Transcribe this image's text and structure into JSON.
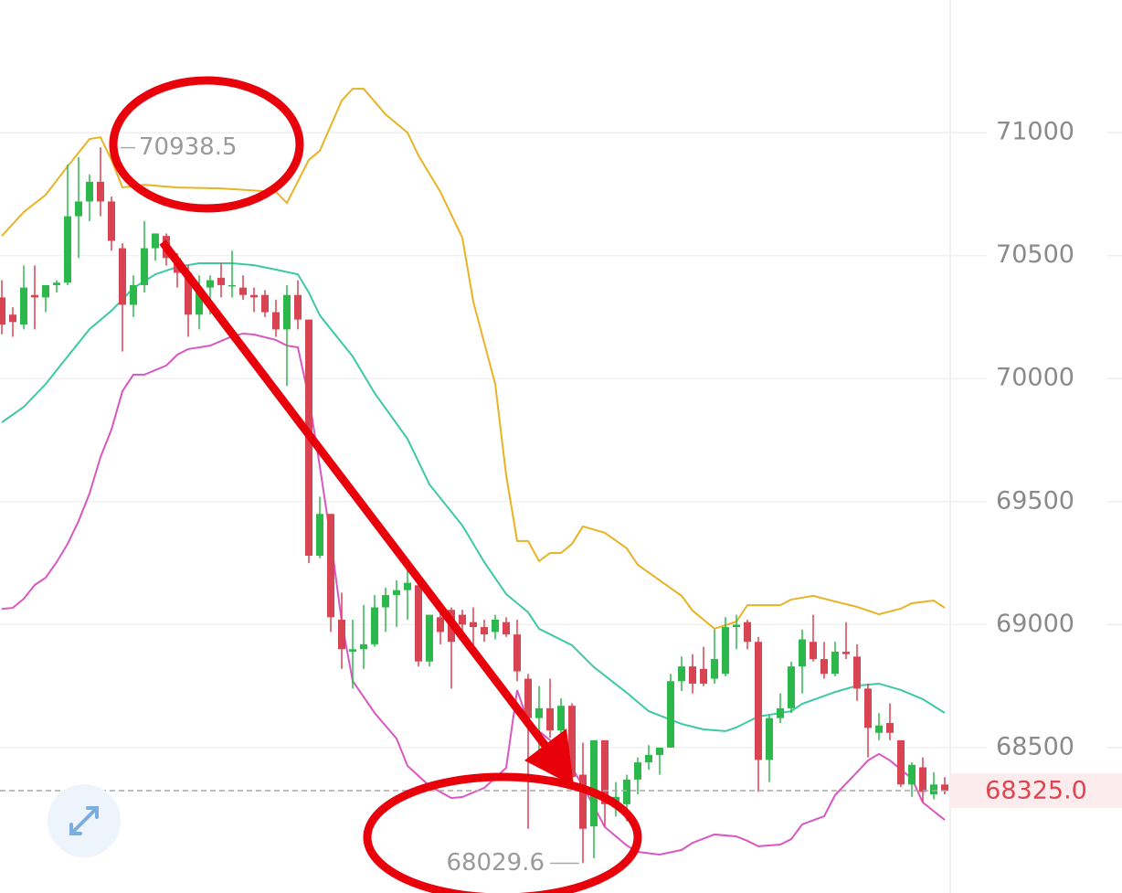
{
  "chart_data": {
    "type": "candlestick",
    "up_color": "#2db84d",
    "down_color": "#d94452",
    "ylim": [
      67909,
      71539
    ],
    "yticks": [
      68500,
      69000,
      69500,
      70000,
      70500,
      71000
    ],
    "grid": true,
    "open": [
      70330,
      70260,
      70220,
      70340,
      70330,
      70380,
      70390,
      70660,
      70720,
      70800,
      70720,
      70530,
      70300,
      70380,
      70530,
      70580,
      70490,
      70430,
      70260,
      70370,
      70410,
      70380,
      70370,
      70340,
      70340,
      70270,
      70200,
      70340,
      70240,
      69280,
      69450,
      69020,
      68890,
      68900,
      68920,
      69070,
      69120,
      69140,
      69160,
      68850,
      69030,
      69060,
      69040,
      69010,
      68990,
      68970,
      69010,
      68960,
      68780,
      68620,
      68660,
      68570,
      68670,
      68390,
      68180,
      68530,
      68270,
      68270,
      68370,
      68440,
      68470,
      68500,
      68770,
      68830,
      68820,
      68780,
      68800,
      68990,
      69010,
      68930,
      68450,
      68620,
      68660,
      68830,
      68930,
      68860,
      68800,
      68890,
      68870,
      68740,
      68560,
      68600,
      68530,
      68350,
      68420,
      68310,
      68350
    ],
    "high": [
      70400,
      70290,
      70460,
      70460,
      70380,
      70400,
      70870,
      70900,
      70830,
      70940,
      70740,
      70550,
      70420,
      70640,
      70590,
      70590,
      70510,
      70460,
      70420,
      70420,
      70470,
      70520,
      70420,
      70370,
      70360,
      70320,
      70380,
      70400,
      70240,
      69520,
      69450,
      69130,
      69020,
      69080,
      69120,
      69150,
      69180,
      69230,
      69200,
      69010,
      69060,
      69070,
      69060,
      69070,
      69020,
      69040,
      69030,
      69020,
      68800,
      68750,
      68780,
      68700,
      68680,
      68520,
      68530,
      68530,
      68360,
      68390,
      68460,
      68510,
      68500,
      68800,
      68870,
      68880,
      68910,
      68980,
      69030,
      69040,
      69020,
      68950,
      68630,
      68720,
      68850,
      68980,
      69040,
      68930,
      68930,
      69010,
      68920,
      68760,
      68640,
      68680,
      68530,
      68440,
      68460,
      68400,
      68380
    ],
    "low": [
      70180,
      70170,
      70200,
      70200,
      70270,
      70350,
      70380,
      70490,
      70640,
      70660,
      70520,
      70110,
      70250,
      70350,
      70480,
      70460,
      70370,
      70170,
      70200,
      70260,
      70330,
      70330,
      70320,
      70270,
      70250,
      70170,
      69970,
      70200,
      69250,
      69270,
      68970,
      68820,
      68740,
      68820,
      68910,
      68970,
      68990,
      69020,
      68830,
      68830,
      68920,
      68740,
      68970,
      68910,
      68930,
      68940,
      68950,
      68770,
      68170,
      68430,
      68540,
      68530,
      68330,
      68030,
      68050,
      68180,
      68220,
      68200,
      68310,
      68410,
      68390,
      68500,
      68730,
      68720,
      68750,
      68760,
      68790,
      68900,
      68900,
      68320,
      68360,
      68600,
      68640,
      68720,
      68850,
      68780,
      68790,
      68860,
      68690,
      68460,
      68530,
      68530,
      68340,
      68300,
      68280,
      68290,
      68310
    ],
    "close": [
      70220,
      70230,
      70370,
      70330,
      70380,
      70390,
      70660,
      70720,
      70800,
      70720,
      70560,
      70300,
      70380,
      70530,
      70590,
      70490,
      70430,
      70260,
      70360,
      70400,
      70380,
      70380,
      70340,
      70330,
      70270,
      70200,
      70340,
      70240,
      69280,
      69450,
      69030,
      68900,
      68900,
      68920,
      69070,
      69120,
      69140,
      69170,
      68850,
      69040,
      68970,
      68930,
      69000,
      68990,
      68960,
      69020,
      68960,
      68810,
      68620,
      68660,
      68570,
      68670,
      68380,
      68170,
      68530,
      68270,
      68300,
      68370,
      68440,
      68470,
      68500,
      68770,
      68830,
      68760,
      68760,
      68860,
      68990,
      69000,
      68930,
      68450,
      68620,
      68660,
      68830,
      68940,
      68860,
      68800,
      68890,
      68880,
      68740,
      68580,
      68590,
      68560,
      68350,
      68430,
      68320,
      68350,
      68325
    ],
    "lines": [
      {
        "color": "#e8b324",
        "x": [
          0,
          2,
          4,
          6,
          8,
          9,
          10,
          11,
          13,
          16,
          20,
          25,
          26,
          28,
          29,
          31,
          32,
          33,
          35,
          37,
          38,
          40,
          42,
          43,
          45,
          46,
          47,
          48,
          49,
          50,
          51,
          52,
          53,
          55,
          57,
          58,
          60,
          62,
          63,
          65,
          67,
          68,
          71,
          72,
          74,
          76,
          78,
          80,
          82,
          83,
          85,
          86
        ],
        "values": [
          70580,
          70677,
          70747,
          70863,
          70974,
          70981,
          70889,
          70777,
          70788,
          70777,
          70773,
          70759,
          70714,
          70889,
          70926,
          71130,
          71178,
          71178,
          71074,
          71000,
          70907,
          70759,
          70573,
          70313,
          69978,
          69607,
          69340,
          69340,
          69258,
          69291,
          69291,
          69328,
          69399,
          69373,
          69310,
          69243,
          69180,
          69117,
          69057,
          68983,
          69012,
          69079,
          69079,
          69102,
          69117,
          69094,
          69072,
          69042,
          69065,
          69087,
          69098,
          69068
        ]
      },
      {
        "color": "#3cc9a4",
        "x": [
          0,
          2,
          4,
          6,
          8,
          10,
          12,
          14,
          16,
          18,
          21,
          23,
          25,
          27,
          28,
          29,
          32,
          34,
          37,
          39,
          42,
          44,
          46,
          48,
          49,
          52,
          54,
          57,
          59,
          62,
          64,
          66,
          67,
          69,
          72,
          73,
          76,
          78,
          80,
          82,
          84,
          86
        ],
        "values": [
          69822,
          69885,
          69978,
          70090,
          70201,
          70276,
          70368,
          70424,
          70454,
          70469,
          70469,
          70461,
          70443,
          70424,
          70350,
          70257,
          70090,
          69941,
          69755,
          69570,
          69403,
          69254,
          69124,
          69050,
          68983,
          68916,
          68827,
          68723,
          68648,
          68596,
          68574,
          68567,
          68582,
          68626,
          68648,
          68678,
          68726,
          68752,
          68760,
          68734,
          68697,
          68641
        ]
      },
      {
        "color": "#d957c0",
        "x": [
          0,
          1,
          2,
          3,
          4,
          5,
          6,
          7,
          8,
          9,
          10,
          11,
          12,
          13,
          15,
          16,
          17,
          19,
          21,
          22,
          23,
          25,
          26,
          27,
          28,
          29,
          30,
          31,
          32,
          34,
          36,
          37,
          39,
          41,
          42,
          44,
          46,
          47,
          48,
          50,
          52,
          53,
          55,
          57,
          58,
          60,
          62,
          63,
          65,
          67,
          68,
          69,
          71,
          72,
          73,
          75,
          76,
          78,
          79,
          80,
          81,
          83,
          84,
          86
        ],
        "values": [
          69064,
          69068,
          69105,
          69161,
          69191,
          69254,
          69328,
          69421,
          69533,
          69681,
          69793,
          69949,
          70016,
          70016,
          70053,
          70097,
          70120,
          70134,
          70172,
          70183,
          70179,
          70157,
          70134,
          70127,
          69923,
          69644,
          69347,
          69012,
          68771,
          68641,
          68537,
          68426,
          68344,
          68295,
          68299,
          68336,
          68418,
          68734,
          68604,
          68530,
          68418,
          68344,
          68177,
          68102,
          68076,
          68065,
          68084,
          68113,
          68147,
          68139,
          68121,
          68099,
          68106,
          68128,
          68188,
          68221,
          68307,
          68400,
          68448,
          68474,
          68448,
          68374,
          68277,
          68206
        ]
      }
    ],
    "high_marker": 70938.5,
    "low_marker": 68029.6,
    "last_price": {
      "value": 68325,
      "label": "68325.0"
    }
  }
}
